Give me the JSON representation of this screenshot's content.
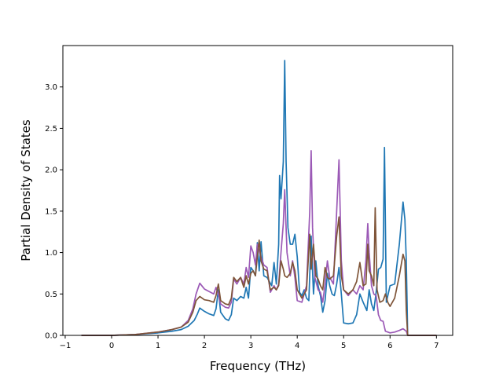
{
  "chart_data": {
    "type": "line",
    "title": "",
    "xlabel": "Frequency (THz)",
    "ylabel": "Partial Density of States",
    "xlim": [
      -1.05,
      7.35
    ],
    "ylim": [
      0.0,
      3.5
    ],
    "xticks": [
      -1,
      0,
      1,
      2,
      3,
      4,
      5,
      6,
      7
    ],
    "xtick_labels": [
      "−1",
      "0",
      "1",
      "2",
      "3",
      "4",
      "5",
      "6",
      "7"
    ],
    "yticks": [
      0.0,
      0.5,
      1.0,
      1.5,
      2.0,
      2.5,
      3.0
    ],
    "ytick_labels": [
      "0.0",
      "0.5",
      "1.0",
      "1.5",
      "2.0",
      "2.5",
      "3.0"
    ],
    "grid": false,
    "legend": "none",
    "series": [
      {
        "color": "#1f77b4",
        "points": [
          [
            -0.65,
            0.0
          ],
          [
            0.0,
            0.0
          ],
          [
            0.5,
            0.01
          ],
          [
            1.0,
            0.03
          ],
          [
            1.3,
            0.05
          ],
          [
            1.5,
            0.07
          ],
          [
            1.65,
            0.11
          ],
          [
            1.78,
            0.18
          ],
          [
            1.85,
            0.26
          ],
          [
            1.9,
            0.33
          ],
          [
            2.0,
            0.29
          ],
          [
            2.1,
            0.26
          ],
          [
            2.2,
            0.24
          ],
          [
            2.25,
            0.32
          ],
          [
            2.3,
            0.55
          ],
          [
            2.35,
            0.28
          ],
          [
            2.45,
            0.2
          ],
          [
            2.52,
            0.18
          ],
          [
            2.58,
            0.25
          ],
          [
            2.63,
            0.45
          ],
          [
            2.7,
            0.42
          ],
          [
            2.78,
            0.47
          ],
          [
            2.85,
            0.45
          ],
          [
            2.9,
            0.58
          ],
          [
            2.95,
            0.45
          ],
          [
            3.0,
            0.82
          ],
          [
            3.05,
            0.78
          ],
          [
            3.1,
            0.72
          ],
          [
            3.14,
            1.12
          ],
          [
            3.18,
            0.78
          ],
          [
            3.22,
            1.13
          ],
          [
            3.28,
            0.72
          ],
          [
            3.35,
            0.7
          ],
          [
            3.45,
            0.6
          ],
          [
            3.5,
            0.88
          ],
          [
            3.55,
            0.62
          ],
          [
            3.6,
            1.1
          ],
          [
            3.62,
            1.93
          ],
          [
            3.65,
            1.65
          ],
          [
            3.7,
            2.1
          ],
          [
            3.73,
            3.32
          ],
          [
            3.76,
            2.1
          ],
          [
            3.8,
            1.3
          ],
          [
            3.85,
            1.1
          ],
          [
            3.9,
            1.1
          ],
          [
            3.95,
            1.22
          ],
          [
            4.0,
            0.95
          ],
          [
            4.05,
            0.52
          ],
          [
            4.1,
            0.48
          ],
          [
            4.15,
            0.55
          ],
          [
            4.2,
            0.45
          ],
          [
            4.25,
            0.42
          ],
          [
            4.3,
            1.2
          ],
          [
            4.35,
            0.5
          ],
          [
            4.4,
            0.9
          ],
          [
            4.45,
            0.6
          ],
          [
            4.5,
            0.48
          ],
          [
            4.55,
            0.28
          ],
          [
            4.6,
            0.42
          ],
          [
            4.65,
            0.75
          ],
          [
            4.7,
            0.6
          ],
          [
            4.75,
            0.5
          ],
          [
            4.8,
            0.48
          ],
          [
            4.85,
            0.62
          ],
          [
            4.9,
            0.82
          ],
          [
            4.95,
            0.5
          ],
          [
            5.0,
            0.15
          ],
          [
            5.1,
            0.14
          ],
          [
            5.2,
            0.15
          ],
          [
            5.28,
            0.25
          ],
          [
            5.35,
            0.5
          ],
          [
            5.42,
            0.4
          ],
          [
            5.5,
            0.3
          ],
          [
            5.55,
            0.55
          ],
          [
            5.6,
            0.38
          ],
          [
            5.65,
            0.3
          ],
          [
            5.7,
            0.52
          ],
          [
            5.75,
            0.8
          ],
          [
            5.8,
            0.82
          ],
          [
            5.85,
            0.92
          ],
          [
            5.88,
            2.27
          ],
          [
            5.92,
            0.4
          ],
          [
            6.0,
            0.6
          ],
          [
            6.1,
            0.62
          ],
          [
            6.2,
            1.1
          ],
          [
            6.28,
            1.61
          ],
          [
            6.32,
            1.4
          ],
          [
            6.35,
            0.9
          ],
          [
            6.38,
            0.0
          ],
          [
            7.0,
            0.0
          ]
        ]
      },
      {
        "color": "#9b59b6",
        "points": [
          [
            -0.65,
            0.0
          ],
          [
            0.0,
            0.0
          ],
          [
            0.5,
            0.01
          ],
          [
            1.0,
            0.04
          ],
          [
            1.3,
            0.07
          ],
          [
            1.5,
            0.1
          ],
          [
            1.65,
            0.18
          ],
          [
            1.75,
            0.32
          ],
          [
            1.82,
            0.5
          ],
          [
            1.9,
            0.63
          ],
          [
            2.0,
            0.56
          ],
          [
            2.1,
            0.53
          ],
          [
            2.2,
            0.5
          ],
          [
            2.25,
            0.58
          ],
          [
            2.3,
            0.5
          ],
          [
            2.35,
            0.38
          ],
          [
            2.45,
            0.34
          ],
          [
            2.52,
            0.33
          ],
          [
            2.58,
            0.4
          ],
          [
            2.63,
            0.68
          ],
          [
            2.7,
            0.62
          ],
          [
            2.78,
            0.7
          ],
          [
            2.85,
            0.62
          ],
          [
            2.9,
            0.82
          ],
          [
            2.95,
            0.7
          ],
          [
            3.0,
            1.08
          ],
          [
            3.05,
            1.0
          ],
          [
            3.1,
            0.85
          ],
          [
            3.14,
            1.1
          ],
          [
            3.2,
            0.98
          ],
          [
            3.28,
            0.85
          ],
          [
            3.35,
            0.82
          ],
          [
            3.42,
            0.52
          ],
          [
            3.5,
            0.6
          ],
          [
            3.55,
            0.55
          ],
          [
            3.6,
            0.62
          ],
          [
            3.65,
            1.0
          ],
          [
            3.7,
            1.35
          ],
          [
            3.73,
            1.76
          ],
          [
            3.78,
            1.0
          ],
          [
            3.85,
            0.72
          ],
          [
            3.9,
            0.9
          ],
          [
            3.95,
            0.7
          ],
          [
            4.0,
            0.42
          ],
          [
            4.1,
            0.4
          ],
          [
            4.2,
            0.6
          ],
          [
            4.27,
            1.5
          ],
          [
            4.3,
            2.23
          ],
          [
            4.33,
            1.3
          ],
          [
            4.38,
            0.7
          ],
          [
            4.45,
            0.55
          ],
          [
            4.5,
            0.52
          ],
          [
            4.55,
            0.4
          ],
          [
            4.6,
            0.62
          ],
          [
            4.65,
            0.9
          ],
          [
            4.7,
            0.7
          ],
          [
            4.78,
            0.62
          ],
          [
            4.85,
            1.5
          ],
          [
            4.9,
            2.12
          ],
          [
            4.95,
            0.9
          ],
          [
            5.0,
            0.55
          ],
          [
            5.1,
            0.48
          ],
          [
            5.2,
            0.55
          ],
          [
            5.28,
            0.5
          ],
          [
            5.35,
            0.6
          ],
          [
            5.42,
            0.55
          ],
          [
            5.48,
            0.9
          ],
          [
            5.52,
            1.35
          ],
          [
            5.55,
            1.0
          ],
          [
            5.6,
            0.6
          ],
          [
            5.65,
            0.5
          ],
          [
            5.7,
            0.48
          ],
          [
            5.75,
            0.25
          ],
          [
            5.8,
            0.18
          ],
          [
            5.85,
            0.17
          ],
          [
            5.9,
            0.05
          ],
          [
            6.0,
            0.03
          ],
          [
            6.1,
            0.04
          ],
          [
            6.2,
            0.06
          ],
          [
            6.28,
            0.08
          ],
          [
            6.35,
            0.05
          ],
          [
            6.38,
            0.0
          ],
          [
            7.0,
            0.0
          ]
        ]
      },
      {
        "color": "#7f5539",
        "points": [
          [
            -0.65,
            0.0
          ],
          [
            0.0,
            0.0
          ],
          [
            0.5,
            0.01
          ],
          [
            1.0,
            0.04
          ],
          [
            1.3,
            0.07
          ],
          [
            1.5,
            0.1
          ],
          [
            1.65,
            0.16
          ],
          [
            1.75,
            0.28
          ],
          [
            1.82,
            0.42
          ],
          [
            1.9,
            0.47
          ],
          [
            2.0,
            0.43
          ],
          [
            2.1,
            0.42
          ],
          [
            2.2,
            0.4
          ],
          [
            2.25,
            0.48
          ],
          [
            2.3,
            0.62
          ],
          [
            2.35,
            0.42
          ],
          [
            2.45,
            0.38
          ],
          [
            2.52,
            0.37
          ],
          [
            2.58,
            0.45
          ],
          [
            2.63,
            0.7
          ],
          [
            2.7,
            0.65
          ],
          [
            2.78,
            0.7
          ],
          [
            2.85,
            0.58
          ],
          [
            2.9,
            0.72
          ],
          [
            2.95,
            0.62
          ],
          [
            3.0,
            0.75
          ],
          [
            3.05,
            0.78
          ],
          [
            3.1,
            0.72
          ],
          [
            3.14,
            0.95
          ],
          [
            3.18,
            1.15
          ],
          [
            3.22,
            0.9
          ],
          [
            3.28,
            0.8
          ],
          [
            3.35,
            0.78
          ],
          [
            3.42,
            0.55
          ],
          [
            3.5,
            0.58
          ],
          [
            3.55,
            0.55
          ],
          [
            3.6,
            0.6
          ],
          [
            3.65,
            0.9
          ],
          [
            3.7,
            0.8
          ],
          [
            3.73,
            0.72
          ],
          [
            3.78,
            0.7
          ],
          [
            3.85,
            0.75
          ],
          [
            3.9,
            0.88
          ],
          [
            3.95,
            0.78
          ],
          [
            4.0,
            0.55
          ],
          [
            4.1,
            0.45
          ],
          [
            4.2,
            0.55
          ],
          [
            4.27,
            1.22
          ],
          [
            4.3,
            0.8
          ],
          [
            4.35,
            1.1
          ],
          [
            4.4,
            0.72
          ],
          [
            4.45,
            0.68
          ],
          [
            4.5,
            0.6
          ],
          [
            4.55,
            0.55
          ],
          [
            4.6,
            0.82
          ],
          [
            4.65,
            0.7
          ],
          [
            4.7,
            0.68
          ],
          [
            4.78,
            0.72
          ],
          [
            4.85,
            1.2
          ],
          [
            4.9,
            1.43
          ],
          [
            4.95,
            0.72
          ],
          [
            5.0,
            0.55
          ],
          [
            5.1,
            0.5
          ],
          [
            5.2,
            0.55
          ],
          [
            5.28,
            0.65
          ],
          [
            5.35,
            0.88
          ],
          [
            5.42,
            0.6
          ],
          [
            5.48,
            0.62
          ],
          [
            5.52,
            1.1
          ],
          [
            5.55,
            0.78
          ],
          [
            5.6,
            0.72
          ],
          [
            5.65,
            0.6
          ],
          [
            5.68,
            1.54
          ],
          [
            5.72,
            0.55
          ],
          [
            5.78,
            0.4
          ],
          [
            5.85,
            0.42
          ],
          [
            5.9,
            0.5
          ],
          [
            5.95,
            0.4
          ],
          [
            6.0,
            0.35
          ],
          [
            6.1,
            0.45
          ],
          [
            6.2,
            0.72
          ],
          [
            6.28,
            0.98
          ],
          [
            6.32,
            0.9
          ],
          [
            6.35,
            0.3
          ],
          [
            6.38,
            0.0
          ],
          [
            7.0,
            0.0
          ]
        ]
      }
    ]
  }
}
